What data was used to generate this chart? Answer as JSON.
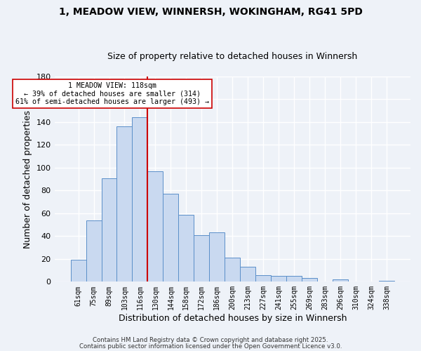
{
  "title": "1, MEADOW VIEW, WINNERSH, WOKINGHAM, RG41 5PD",
  "subtitle": "Size of property relative to detached houses in Winnersh",
  "xlabel": "Distribution of detached houses by size in Winnersh",
  "ylabel": "Number of detached properties",
  "bar_labels": [
    "61sqm",
    "75sqm",
    "89sqm",
    "103sqm",
    "116sqm",
    "130sqm",
    "144sqm",
    "158sqm",
    "172sqm",
    "186sqm",
    "200sqm",
    "213sqm",
    "227sqm",
    "241sqm",
    "255sqm",
    "269sqm",
    "283sqm",
    "296sqm",
    "310sqm",
    "324sqm",
    "338sqm"
  ],
  "bar_values": [
    19,
    54,
    91,
    136,
    144,
    97,
    77,
    59,
    41,
    43,
    21,
    13,
    6,
    5,
    5,
    3,
    0,
    2,
    0,
    0,
    1
  ],
  "bar_color": "#c9d9f0",
  "bar_edgecolor": "#5b8fc9",
  "vline_x": 4.5,
  "vline_color": "#cc0000",
  "ylim": [
    0,
    180
  ],
  "yticks": [
    0,
    20,
    40,
    60,
    80,
    100,
    120,
    140,
    160,
    180
  ],
  "annotation_title": "1 MEADOW VIEW: 118sqm",
  "annotation_line1": "← 39% of detached houses are smaller (314)",
  "annotation_line2": "61% of semi-detached houses are larger (493) →",
  "annotation_box_color": "#ffffff",
  "annotation_box_edgecolor": "#cc0000",
  "footer1": "Contains HM Land Registry data © Crown copyright and database right 2025.",
  "footer2": "Contains public sector information licensed under the Open Government Licence v3.0.",
  "background_color": "#eef2f8",
  "grid_color": "#ffffff",
  "title_fontsize": 10,
  "subtitle_fontsize": 9
}
